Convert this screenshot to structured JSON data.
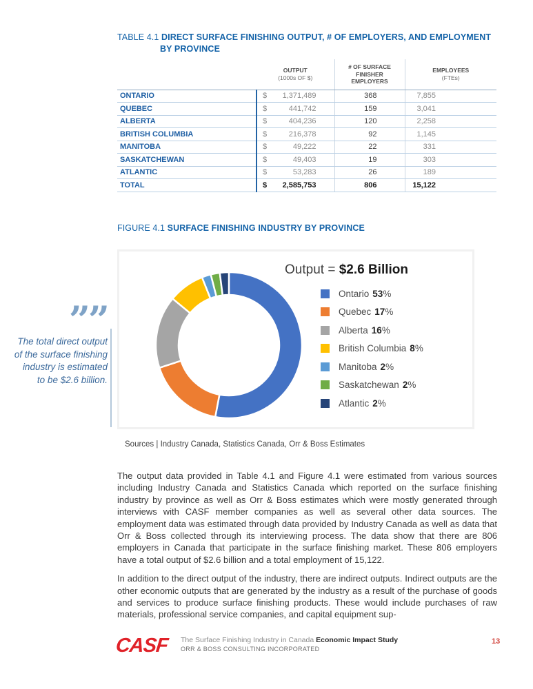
{
  "table": {
    "label": "TABLE 4.1",
    "title_line1": "DIRECT SURFACE FINISHING OUTPUT, # OF EMPLOYERS, AND EMPLOYMENT",
    "title_line2": "BY PROVINCE",
    "currency_symbol": "$",
    "headers": {
      "output": "OUTPUT",
      "output_sub": "(1000s OF $)",
      "employers_l1": "# OF SURFACE",
      "employers_l2": "FINISHER",
      "employers_l3": "EMPLOYERS",
      "employees": "EMPLOYEES",
      "employees_sub": "(FTEs)"
    },
    "rows": [
      {
        "province": "ONTARIO",
        "output": "1,371,489",
        "employers": "368",
        "employees": "7,855"
      },
      {
        "province": "QUEBEC",
        "output": "441,742",
        "employers": "159",
        "employees": "3,041"
      },
      {
        "province": "ALBERTA",
        "output": "404,236",
        "employers": "120",
        "employees": "2,258"
      },
      {
        "province": "BRITISH COLUMBIA",
        "output": "216,378",
        "employers": "92",
        "employees": "1,145"
      },
      {
        "province": "MANITOBA",
        "output": "49,222",
        "employers": "22",
        "employees": "331"
      },
      {
        "province": "SASKATCHEWAN",
        "output": "49,403",
        "employers": "19",
        "employees": "303"
      },
      {
        "province": "ATLANTIC",
        "output": "53,283",
        "employers": "26",
        "employees": "189"
      }
    ],
    "total": {
      "province": "TOTAL",
      "output": "2,585,753",
      "employers": "806",
      "employees": "15,122"
    }
  },
  "figure": {
    "label": "FIGURE 4.1",
    "title": "SURFACE FINISHING INDUSTRY BY PROVINCE",
    "chart_title_prefix": "Output = ",
    "chart_title_value": "$2.6 Billion",
    "sources": "Sources | Industry Canada, Statistics Canada, Orr & Boss Estimates"
  },
  "chart_data": {
    "type": "pie",
    "subtype": "donut",
    "title": "Output = $2.6 Billion",
    "categories": [
      "Ontario",
      "Quebec",
      "Alberta",
      "British Columbia",
      "Manitoba",
      "Saskatchewan",
      "Atlantic"
    ],
    "values": [
      53,
      17,
      16,
      8,
      2,
      2,
      2
    ],
    "unit": "%",
    "colors": [
      "#4472C4",
      "#ED7D31",
      "#A5A5A5",
      "#FFC000",
      "#5B9BD5",
      "#70AD47",
      "#264478"
    ],
    "legend_position": "right",
    "donut_hole_ratio": 0.69,
    "start_angle_deg": -90,
    "direction": "clockwise"
  },
  "pull_quote": {
    "glyph": "””",
    "text": "The total direct output of the surface finishing industry is estimated to be $2.6 billion."
  },
  "body": {
    "paragraph1": "The output data provided in Table 4.1 and Figure 4.1 were estimated from various sources including Industry Canada and Statistics Canada which reported on the surface finishing industry by province as well as Orr & Boss estimates which were mostly generated through interviews with CASF member companies as well as several other data sources. The employment data was estimated through data provided by Industry Canada as well as data that Orr & Boss collected through its interviewing process. The data show that there are 806 employers in Canada that participate in the surface finishing market. These 806 employers have a total output of $2.6 billion and a total employment of 15,122.",
    "paragraph2": "In addition to the direct output of the industry, there are indirect outputs. Indirect outputs are the other economic outputs that are generated by the industry as a result of the purchase of goods and services to produce surface finishing products. These would include purchases of raw materials, professional service companies, and capital equipment sup-"
  },
  "footer": {
    "logo": "CASF",
    "report_title": "The Surface Finishing Industry in Canada ",
    "report_title_bold": "Economic Impact Study",
    "subtitle": "ORR & BOSS CONSULTING INCORPORATED",
    "page_number": "13"
  }
}
